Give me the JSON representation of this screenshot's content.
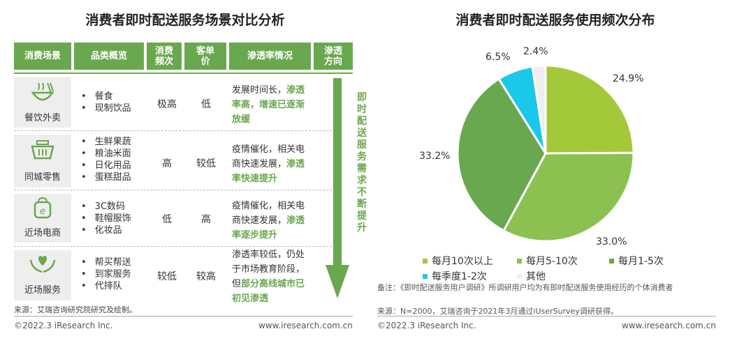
{
  "left": {
    "title": "消费者即时配送服务场景对比分析",
    "headers": [
      "消费场景",
      "品类概览",
      "消费频次",
      "客单价",
      "渗透率情况",
      "渗透方向"
    ],
    "rows": [
      {
        "label": "餐饮外卖",
        "icon": "bowl-icon",
        "items": [
          "餐食",
          "现制饮品"
        ],
        "frequency": "极高",
        "price": "低",
        "penetration_plain": "发展时间长，",
        "penetration_highlight": "渗透率高，增速已逐渐放缓"
      },
      {
        "label": "同城零售",
        "icon": "basket-icon",
        "items": [
          "生鲜果蔬",
          "粮油米面",
          "日化用品",
          "蛋糕甜品"
        ],
        "frequency": "高",
        "price": "较低",
        "penetration_plain": "疫情催化，相关电商快速发展，",
        "penetration_highlight": "渗透率快速提升"
      },
      {
        "label": "近场电商",
        "icon": "ecommerce-bag-icon",
        "items": [
          "3C数码",
          "鞋帽服饰",
          "化妆品"
        ],
        "frequency": "低",
        "price": "高",
        "penetration_plain": "疫情催化，相关电商快速发展，",
        "penetration_highlight": "渗透率逐步提升"
      },
      {
        "label": "近场服务",
        "icon": "hands-heart-icon",
        "items": [
          "帮买帮送",
          "到家服务",
          "代排队"
        ],
        "frequency": "较低",
        "price": "较高",
        "penetration_plain": "渗透率较低，仍处于市场教育阶段，但",
        "penetration_highlight": "部分高线城市已初见渗透"
      }
    ],
    "arrow_text": "即时配送服务需求不断提升",
    "source": "来源：艾瑞咨询研究院研究及绘制。"
  },
  "right": {
    "title": "消费者即时配送服务使用频次分布",
    "note": "备注：《即时配送服务用户调研》所调研用户均为有即时配送服务使用经历的个体消费者",
    "source": "来源：N=2000，艾瑞咨询于2021年3月通过iUserSurvey调研获得。"
  },
  "footer": {
    "copyright": "©2022.3 iResearch Inc.",
    "url": "www.iresearch.com.cn"
  },
  "chart_data": {
    "type": "pie",
    "title": "消费者即时配送服务使用频次分布",
    "slices": [
      {
        "name": "每月10次以上",
        "value": 24.9,
        "label": "24.9%",
        "color": "#a3c93a"
      },
      {
        "name": "每月5-10次",
        "value": 33.0,
        "label": "33.0%",
        "color": "#8cc152"
      },
      {
        "name": "每月1-5次",
        "value": 33.2,
        "label": "33.2%",
        "color": "#6aa84f"
      },
      {
        "name": "每季度1-2次",
        "value": 6.5,
        "label": "6.5%",
        "color": "#1cc8ea"
      },
      {
        "name": "其他",
        "value": 2.4,
        "label": "2.4%",
        "color": "#eeeeee"
      }
    ],
    "legend_position": "bottom"
  }
}
